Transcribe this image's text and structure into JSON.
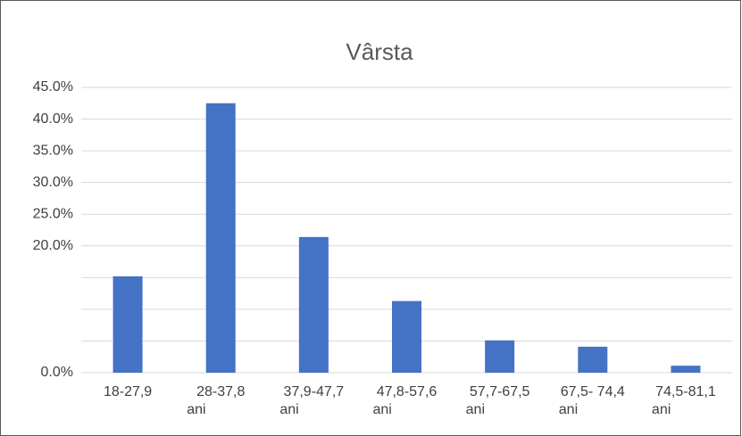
{
  "chart_data": {
    "type": "bar",
    "title": "Vârsta",
    "categories": [
      [
        "18-27,9"
      ],
      [
        "28-37,8",
        "ani"
      ],
      [
        "37,9-47,7",
        "ani"
      ],
      [
        "47,8-57,6",
        "ani"
      ],
      [
        "57,7-67,5",
        "ani"
      ],
      [
        "67,5- 74,4",
        "ani"
      ],
      [
        "74,5-81,1",
        "ani"
      ]
    ],
    "values": [
      15.2,
      42.5,
      21.4,
      11.3,
      5.1,
      4.1,
      1.1
    ],
    "color": "#4472c4",
    "ylim": [
      0,
      45
    ],
    "yticks": [
      {
        "value": 0,
        "label": "0.0%"
      },
      {
        "value": 20,
        "label": "20.0%"
      },
      {
        "value": 25,
        "label": "25.0%"
      },
      {
        "value": 30,
        "label": "30.0%"
      },
      {
        "value": 35,
        "label": "35.0%"
      },
      {
        "value": 40,
        "label": "40.0%"
      },
      {
        "value": 45,
        "label": "45.0%"
      }
    ],
    "ygrid": [
      0,
      5,
      10,
      15,
      20,
      25,
      30,
      35,
      40,
      45
    ],
    "grid": true
  }
}
